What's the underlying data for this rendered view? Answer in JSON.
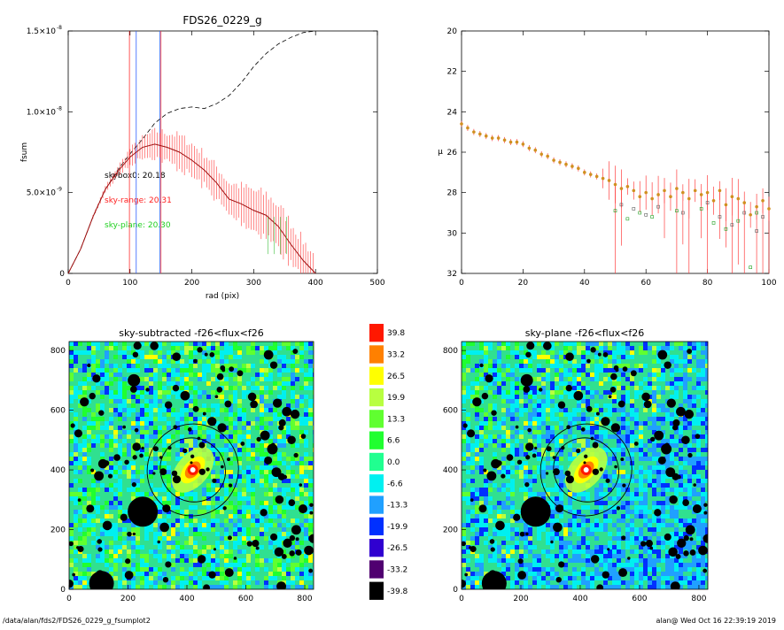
{
  "footer": {
    "path": "/data/alan/fds2/FDS26_0229_g_fsumplot2",
    "stamp": "alan@  Wed Oct 16 22:39:19 2019"
  },
  "chart_data": [
    {
      "type": "line",
      "title": "FDS26_0229_g",
      "xlabel": "rad (pix)",
      "ylabel": "fsum",
      "xlim": [
        0,
        500
      ],
      "ylim": [
        0,
        1.5e-08
      ],
      "xticks": [
        "0",
        "100",
        "200",
        "300",
        "400",
        "500"
      ],
      "yticks": [
        {
          "v": 0,
          "label": "0"
        },
        {
          "v": 5e-09,
          "label": "5.0×10",
          "exp": "-9"
        },
        {
          "v": 1e-08,
          "label": "1.0×10",
          "exp": "-8"
        },
        {
          "v": 1.5e-08,
          "label": "1.5×10",
          "exp": "-8"
        }
      ],
      "annotations": [
        {
          "text": "skybox0: 20.18",
          "color": "#000000"
        },
        {
          "text": "sky-range: 20.31",
          "color": "#ff2020"
        },
        {
          "text": "sky-plane: 20.30",
          "color": "#20d020"
        }
      ],
      "vlines": [
        {
          "x": 99,
          "color": "#ff3030"
        },
        {
          "x": 110,
          "color": "#3060ff"
        },
        {
          "x": 148,
          "color": "#3060ff"
        },
        {
          "x": 150,
          "color": "#ff3030"
        }
      ],
      "series": [
        {
          "style": "dashed",
          "color": "#000000",
          "x": [
            0,
            20,
            40,
            60,
            80,
            100,
            120,
            140,
            160,
            180,
            200,
            220,
            240,
            260,
            280,
            300,
            320,
            340,
            360,
            380,
            400
          ],
          "y": [
            0,
            1.5e-09,
            3.5e-09,
            5.2e-09,
            6.4e-09,
            7.4e-09,
            8.3e-09,
            9.3e-09,
            9.9e-09,
            1.02e-08,
            1.03e-08,
            1.02e-08,
            1.05e-08,
            1.1e-08,
            1.18e-08,
            1.28e-08,
            1.36e-08,
            1.42e-08,
            1.46e-08,
            1.49e-08,
            1.5e-08
          ]
        },
        {
          "style": "band",
          "color": "#ff3030",
          "x": [
            0,
            20,
            40,
            60,
            80,
            100,
            120,
            140,
            160,
            180,
            200,
            220,
            240,
            260,
            280,
            300,
            320,
            340,
            360,
            380,
            400
          ],
          "y": [
            0,
            1.5e-09,
            3.5e-09,
            5.2e-09,
            6.3e-09,
            7.2e-09,
            7.8e-09,
            8e-09,
            7.8e-09,
            7.5e-09,
            7e-09,
            6.4e-09,
            5.6e-09,
            4.6e-09,
            4.3e-09,
            3.9e-09,
            3.6e-09,
            2.9e-09,
            1.8e-09,
            8e-10,
            0
          ],
          "err": [
            0,
            0,
            1e-10,
            2e-10,
            3e-10,
            5e-10,
            6e-10,
            8e-10,
            9e-10,
            1e-09,
            1e-09,
            1e-09,
            1e-09,
            1e-09,
            1.1e-09,
            1.2e-09,
            1.3e-09,
            1.3e-09,
            1.3e-09,
            1.2e-09,
            1e-09
          ]
        }
      ]
    },
    {
      "type": "scatter",
      "title": "",
      "xlabel": "",
      "ylabel": "µ",
      "xlim": [
        0,
        100
      ],
      "ylim": [
        32,
        20
      ],
      "xticks": [
        "0",
        "20",
        "40",
        "60",
        "80",
        "100"
      ],
      "yticks": [
        "20",
        "22",
        "24",
        "26",
        "28",
        "30",
        "32"
      ],
      "series": [
        {
          "marker": "filled-circle",
          "color": "#d09020",
          "x": [
            0,
            2,
            4,
            6,
            8,
            10,
            12,
            14,
            16,
            18,
            20,
            22,
            24,
            26,
            28,
            30,
            32,
            34,
            36,
            38,
            40,
            42,
            44,
            46,
            48,
            50,
            52,
            54,
            56,
            58,
            60,
            62,
            64,
            66,
            68,
            70,
            72,
            74,
            76,
            78,
            80,
            82,
            84,
            86,
            88,
            90,
            92,
            94,
            96,
            98,
            100
          ],
          "y": [
            24.6,
            24.8,
            25.0,
            25.1,
            25.2,
            25.3,
            25.3,
            25.4,
            25.5,
            25.5,
            25.6,
            25.8,
            25.9,
            26.1,
            26.2,
            26.4,
            26.5,
            26.6,
            26.7,
            26.8,
            27.0,
            27.1,
            27.2,
            27.3,
            27.4,
            27.6,
            27.8,
            27.7,
            27.9,
            28.2,
            28.0,
            28.3,
            28.1,
            27.9,
            28.2,
            27.8,
            28.0,
            28.3,
            27.9,
            28.1,
            28.0,
            28.4,
            27.9,
            28.6,
            28.2,
            28.3,
            28.5,
            29.1,
            28.7,
            28.4,
            28.8
          ]
        },
        {
          "marker": "open-square",
          "color": "#20a020",
          "x": [
            50,
            54,
            58,
            62,
            70,
            78,
            82,
            86,
            90,
            94,
            96
          ],
          "y": [
            28.9,
            29.3,
            29.0,
            29.2,
            28.9,
            28.8,
            29.5,
            29.8,
            29.4,
            31.7,
            29.0
          ]
        },
        {
          "marker": "open-square",
          "color": "#606060",
          "x": [
            52,
            56,
            60,
            64,
            72,
            80,
            84,
            88,
            92,
            96,
            98
          ],
          "y": [
            28.6,
            28.8,
            29.1,
            28.7,
            29.0,
            28.5,
            29.2,
            29.6,
            29.0,
            29.9,
            29.2
          ]
        }
      ]
    },
    {
      "type": "heatmap",
      "title": "sky-subtracted -f26<flux<f26",
      "xlim": [
        0,
        830
      ],
      "ylim": [
        0,
        830
      ],
      "xticks": [
        "0",
        "200",
        "400",
        "600",
        "800"
      ],
      "yticks": [
        "0",
        "200",
        "400",
        "600",
        "800"
      ]
    },
    {
      "type": "heatmap",
      "title": "sky-plane -f26<flux<f26",
      "xlim": [
        0,
        830
      ],
      "ylim": [
        0,
        830
      ],
      "xticks": [
        "0",
        "200",
        "400",
        "600",
        "800"
      ],
      "yticks": [
        "0",
        "200",
        "400",
        "600",
        "800"
      ]
    }
  ],
  "colorbar": [
    {
      "label": "39.8",
      "color": "#ff1800"
    },
    {
      "label": "33.2",
      "color": "#ff8000"
    },
    {
      "label": "26.5",
      "color": "#ffff00"
    },
    {
      "label": "19.9",
      "color": "#b8ff40"
    },
    {
      "label": "13.3",
      "color": "#60ff30"
    },
    {
      "label": "6.6",
      "color": "#20ff30"
    },
    {
      "label": "0.0",
      "color": "#20ff90"
    },
    {
      "label": "-6.6",
      "color": "#00f0f0"
    },
    {
      "label": "-13.3",
      "color": "#20a0ff"
    },
    {
      "label": "-19.9",
      "color": "#0030ff"
    },
    {
      "label": "-26.5",
      "color": "#3000d0"
    },
    {
      "label": "-33.2",
      "color": "#500070"
    },
    {
      "label": "-39.8",
      "color": "#000000"
    }
  ]
}
